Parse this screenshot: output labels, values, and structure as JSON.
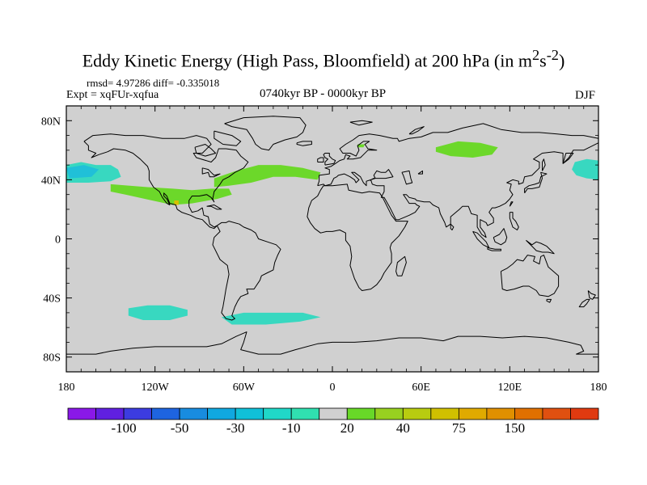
{
  "title": {
    "main": "Eddy Kinetic Energy (High Pass, Bloomfield) at 200 hPa (in m",
    "sup1": "2",
    "mid": "s",
    "sup2": "-2",
    "end": ")"
  },
  "stats_line": "rmsd= 4.97286 diff= -0.335018",
  "experiment": "Expt = xqFUr-xqfua",
  "period": "0740kyr BP - 0000kyr BP",
  "season": "DJF",
  "map": {
    "y_ticks": [
      {
        "lat": 80,
        "label": "80N"
      },
      {
        "lat": 40,
        "label": "40N"
      },
      {
        "lat": 0,
        "label": "0"
      },
      {
        "lat": -40,
        "label": "40S"
      },
      {
        "lat": -80,
        "label": "80S"
      }
    ],
    "x_ticks": [
      {
        "lon": -180,
        "label": "180"
      },
      {
        "lon": -120,
        "label": "120W"
      },
      {
        "lon": -60,
        "label": "60W"
      },
      {
        "lon": 0,
        "label": "0"
      },
      {
        "lon": 60,
        "label": "60E"
      },
      {
        "lon": 120,
        "label": "120E"
      },
      {
        "lon": 180,
        "label": "180"
      }
    ],
    "neutral_color": "#d0d0d0",
    "anomaly_regions": [
      {
        "name": "north-pacific-east",
        "value_class": "-10",
        "color": "#38d8c0",
        "points": [
          [
            -180,
            50
          ],
          [
            -170,
            52
          ],
          [
            -160,
            50
          ],
          [
            -150,
            50
          ],
          [
            -145,
            47
          ],
          [
            -143,
            42
          ],
          [
            -150,
            39
          ],
          [
            -165,
            38
          ],
          [
            -180,
            38
          ]
        ]
      },
      {
        "name": "north-pacific-west",
        "value_class": "-10",
        "color": "#38d8c0",
        "points": [
          [
            180,
            53
          ],
          [
            172,
            54
          ],
          [
            164,
            52
          ],
          [
            162,
            47
          ],
          [
            165,
            43
          ],
          [
            172,
            41
          ],
          [
            180,
            40
          ]
        ]
      },
      {
        "name": "south-pacific",
        "value_class": "-10",
        "color": "#38d8c0",
        "points": [
          [
            -138,
            -47
          ],
          [
            -125,
            -45
          ],
          [
            -110,
            -45
          ],
          [
            -98,
            -48
          ],
          [
            -98,
            -52
          ],
          [
            -110,
            -55
          ],
          [
            -128,
            -55
          ],
          [
            -138,
            -52
          ]
        ]
      },
      {
        "name": "south-atlantic",
        "value_class": "-10",
        "color": "#38d8c0",
        "points": [
          [
            -75,
            -53
          ],
          [
            -60,
            -50
          ],
          [
            -40,
            -50
          ],
          [
            -20,
            -50
          ],
          [
            -8,
            -53
          ],
          [
            -22,
            -56
          ],
          [
            -45,
            -58
          ],
          [
            -68,
            -58
          ]
        ]
      },
      {
        "name": "north-pacific-core",
        "value_class": "-30",
        "color": "#20c0d8",
        "points": [
          [
            -180,
            48
          ],
          [
            -168,
            50
          ],
          [
            -158,
            47
          ],
          [
            -163,
            42
          ],
          [
            -178,
            41
          ]
        ]
      },
      {
        "name": "subtropical-pacific-jet",
        "value_class": "20",
        "color": "#6cd82a",
        "points": [
          [
            -150,
            37
          ],
          [
            -125,
            35
          ],
          [
            -108,
            34
          ],
          [
            -95,
            33
          ],
          [
            -82,
            34
          ],
          [
            -70,
            34
          ],
          [
            -68,
            30
          ],
          [
            -78,
            27
          ],
          [
            -95,
            24
          ],
          [
            -108,
            23
          ],
          [
            -122,
            26
          ],
          [
            -140,
            30
          ],
          [
            -150,
            32
          ]
        ]
      },
      {
        "name": "north-atlantic-jet",
        "value_class": "20",
        "color": "#6cd82a",
        "points": [
          [
            -80,
            41
          ],
          [
            -65,
            46
          ],
          [
            -50,
            50
          ],
          [
            -35,
            50
          ],
          [
            -20,
            48
          ],
          [
            -8,
            45
          ],
          [
            -10,
            40
          ],
          [
            -25,
            42
          ],
          [
            -40,
            42
          ],
          [
            -55,
            38
          ],
          [
            -70,
            36
          ],
          [
            -80,
            35
          ]
        ]
      },
      {
        "name": "siberia",
        "value_class": "20",
        "color": "#6cd82a",
        "points": [
          [
            70,
            62
          ],
          [
            85,
            66
          ],
          [
            100,
            65
          ],
          [
            112,
            62
          ],
          [
            108,
            57
          ],
          [
            95,
            55
          ],
          [
            80,
            56
          ],
          [
            70,
            59
          ]
        ]
      },
      {
        "name": "arctic-speck",
        "value_class": "20",
        "color": "#6cd82a",
        "points": [
          [
            17,
            64
          ],
          [
            22,
            64
          ],
          [
            21,
            62
          ],
          [
            17,
            62
          ]
        ]
      },
      {
        "name": "mexico-speck",
        "value_class": "40",
        "color": "#d8c000",
        "points": [
          [
            -107,
            26
          ],
          [
            -104,
            26
          ],
          [
            -104,
            23
          ],
          [
            -107,
            23
          ]
        ]
      }
    ]
  },
  "colorbar": {
    "colors": [
      "#8a18e8",
      "#6020e0",
      "#3c3ce0",
      "#1e64e0",
      "#188ce0",
      "#10a8e0",
      "#10c0d8",
      "#20d8c8",
      "#30e0b0",
      "#d0d0d0",
      "#68d828",
      "#98d020",
      "#b8cc10",
      "#d0c000",
      "#e0aa00",
      "#e09000",
      "#e07000",
      "#e05010",
      "#e03a10"
    ],
    "labels": [
      {
        "boundary": 2,
        "text": "-100"
      },
      {
        "boundary": 4,
        "text": "-50"
      },
      {
        "boundary": 6,
        "text": "-30"
      },
      {
        "boundary": 8,
        "text": "-10"
      },
      {
        "boundary": 10,
        "text": "20"
      },
      {
        "boundary": 12,
        "text": "40"
      },
      {
        "boundary": 14,
        "text": "75"
      },
      {
        "boundary": 16,
        "text": "150"
      }
    ]
  }
}
